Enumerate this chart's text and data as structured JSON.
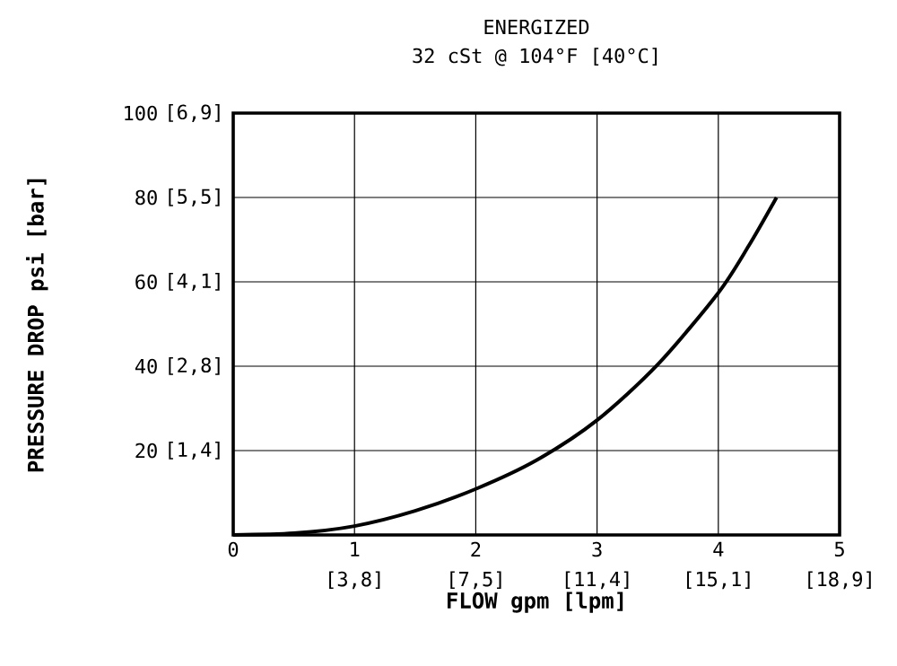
{
  "chart_data": {
    "type": "line",
    "title": "ENERGIZED",
    "subtitle": "32 cSt @ 104°F [40°C]",
    "xlabel": "FLOW gpm [lpm]",
    "ylabel": "PRESSURE DROP psi [bar]",
    "x": [
      0,
      0.5,
      1,
      1.5,
      2,
      2.5,
      3,
      3.5,
      4,
      4.25,
      4.48
    ],
    "series": [
      {
        "color": "#000000",
        "values": [
          0,
          0.4,
          2.1,
          5.7,
          10.9,
          17.7,
          27.2,
          40.4,
          57.4,
          68.5,
          80
        ]
      }
    ],
    "xlim": [
      0,
      5
    ],
    "ylim": [
      0,
      100
    ],
    "xticks": [
      0,
      1,
      2,
      3,
      4,
      5
    ],
    "yticks": [
      20,
      40,
      60,
      80,
      100
    ],
    "annotations": [
      "[3,8]",
      "[7,5]",
      "[11,4]",
      "[15,1]",
      "[18,9]",
      "[1,4]",
      "[2,8]",
      "[4,1]",
      "[5,5]",
      "[6,9]"
    ],
    "grid": true,
    "marker": "none",
    "line_style": "solid"
  }
}
